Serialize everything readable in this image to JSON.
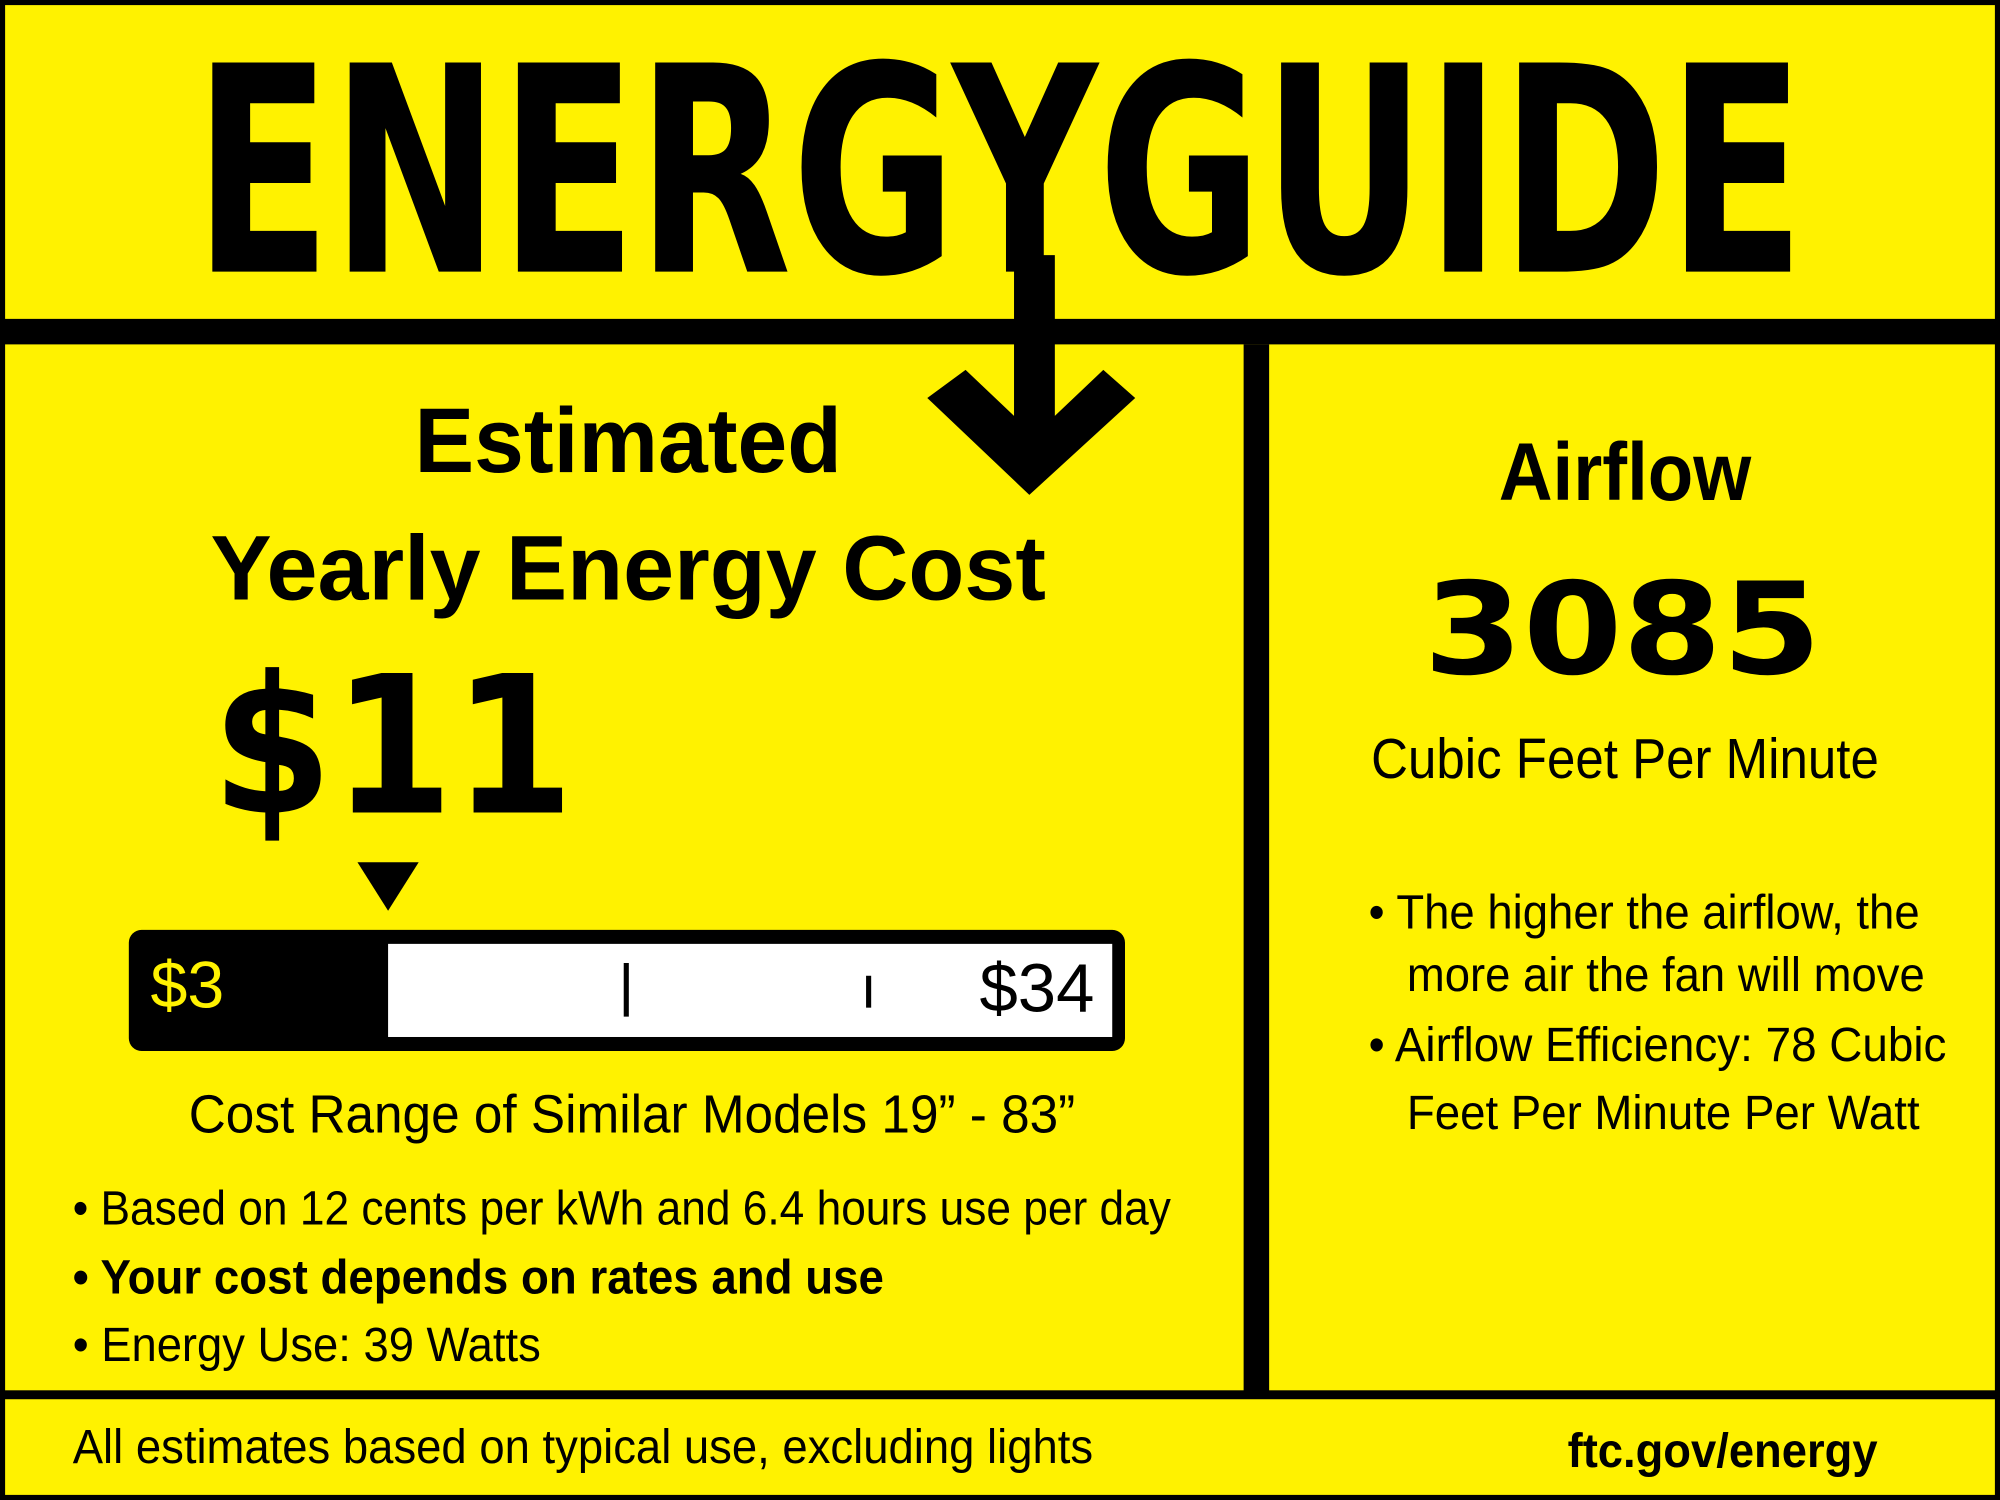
{
  "header": {
    "title": "ENERGYGUIDE"
  },
  "cost_panel": {
    "heading": [
      "Estimated",
      "Yearly Energy Cost"
    ],
    "estimated_cost": {
      "value": 11,
      "label": "$11"
    },
    "scale_min": {
      "value": 3,
      "label": "$3"
    },
    "scale_max": {
      "value": 34,
      "label": "$34"
    },
    "range_caption": "Cost Range of Similar Models 19” - 83”",
    "notes": [
      "• Based on 12 cents per kWh and 6.4 hours use per day",
      "• Your cost depends on rates and use",
      "• Energy Use: 39 Watts"
    ]
  },
  "airflow_panel": {
    "title": "Airflow",
    "value": "3085",
    "unit": "Cubic Feet Per Minute",
    "notes": [
      [
        "• The higher the airflow, the",
        "more air the fan will move"
      ],
      [
        "• Airflow Efficiency: 78 Cubic",
        "Feet Per Minute Per Watt"
      ]
    ]
  },
  "footer": {
    "disclaimer": "All estimates based on typical use, excluding lights",
    "link": "ftc.gov/energy"
  }
}
